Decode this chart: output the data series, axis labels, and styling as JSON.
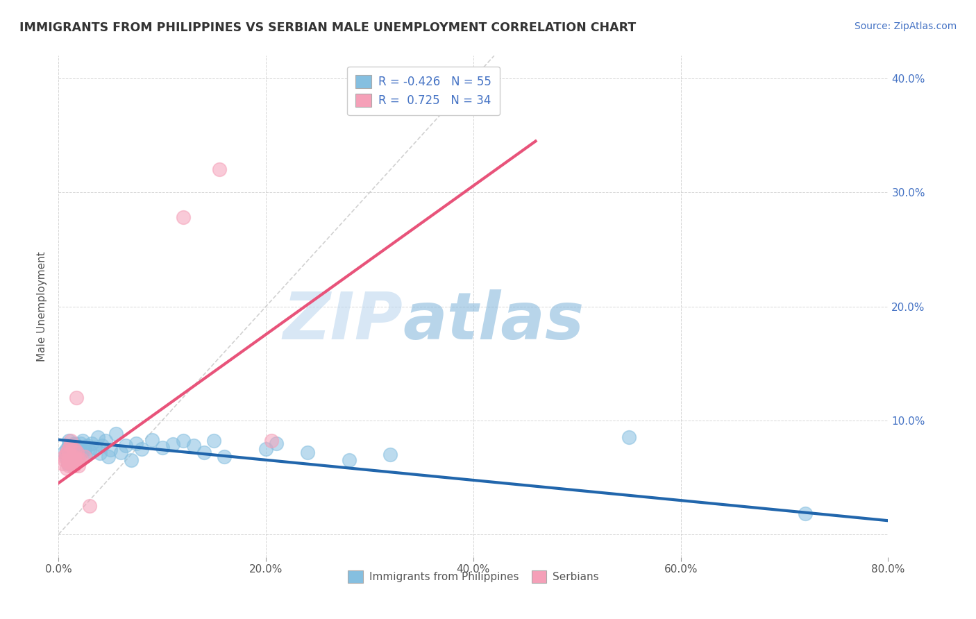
{
  "title": "IMMIGRANTS FROM PHILIPPINES VS SERBIAN MALE UNEMPLOYMENT CORRELATION CHART",
  "source": "Source: ZipAtlas.com",
  "xlabel": "",
  "ylabel": "Male Unemployment",
  "xlim": [
    0,
    0.8
  ],
  "ylim": [
    -0.02,
    0.42
  ],
  "yticks": [
    0.0,
    0.1,
    0.2,
    0.3,
    0.4
  ],
  "ytick_labels": [
    "",
    "10.0%",
    "20.0%",
    "30.0%",
    "40.0%"
  ],
  "xticks": [
    0.0,
    0.2,
    0.4,
    0.6,
    0.8
  ],
  "xtick_labels": [
    "0.0%",
    "20.0%",
    "40.0%",
    "60.0%",
    "80.0%"
  ],
  "legend_R1": "R = -0.426",
  "legend_N1": "N = 55",
  "legend_R2": "R =  0.725",
  "legend_N2": "N = 34",
  "color_blue": "#85bfe0",
  "color_pink": "#f5a0b8",
  "color_blue_line": "#2166ac",
  "color_pink_line": "#e8537a",
  "color_diag": "#cccccc",
  "watermark_zip": "ZIP",
  "watermark_atlas": "atlas",
  "blue_scatter_x": [
    0.005,
    0.007,
    0.008,
    0.009,
    0.01,
    0.01,
    0.011,
    0.012,
    0.012,
    0.013,
    0.014,
    0.015,
    0.015,
    0.016,
    0.016,
    0.017,
    0.018,
    0.019,
    0.02,
    0.021,
    0.022,
    0.023,
    0.025,
    0.026,
    0.028,
    0.03,
    0.032,
    0.035,
    0.038,
    0.04,
    0.042,
    0.045,
    0.048,
    0.05,
    0.055,
    0.06,
    0.065,
    0.07,
    0.075,
    0.08,
    0.09,
    0.1,
    0.11,
    0.12,
    0.13,
    0.14,
    0.15,
    0.16,
    0.2,
    0.21,
    0.24,
    0.28,
    0.32,
    0.55,
    0.72
  ],
  "blue_scatter_y": [
    0.072,
    0.068,
    0.075,
    0.062,
    0.078,
    0.082,
    0.07,
    0.074,
    0.065,
    0.071,
    0.069,
    0.076,
    0.08,
    0.073,
    0.079,
    0.068,
    0.077,
    0.072,
    0.075,
    0.08,
    0.071,
    0.082,
    0.074,
    0.069,
    0.078,
    0.073,
    0.08,
    0.076,
    0.085,
    0.071,
    0.078,
    0.082,
    0.068,
    0.074,
    0.088,
    0.072,
    0.078,
    0.065,
    0.08,
    0.075,
    0.083,
    0.076,
    0.079,
    0.082,
    0.078,
    0.072,
    0.082,
    0.068,
    0.075,
    0.08,
    0.072,
    0.065,
    0.07,
    0.085,
    0.018
  ],
  "pink_scatter_x": [
    0.004,
    0.005,
    0.006,
    0.007,
    0.008,
    0.008,
    0.009,
    0.009,
    0.01,
    0.01,
    0.01,
    0.011,
    0.011,
    0.012,
    0.012,
    0.013,
    0.013,
    0.014,
    0.014,
    0.015,
    0.015,
    0.016,
    0.016,
    0.017,
    0.018,
    0.018,
    0.019,
    0.02,
    0.022,
    0.025,
    0.03,
    0.12,
    0.155,
    0.205
  ],
  "pink_scatter_y": [
    0.062,
    0.068,
    0.065,
    0.07,
    0.058,
    0.072,
    0.064,
    0.074,
    0.06,
    0.065,
    0.07,
    0.062,
    0.078,
    0.066,
    0.082,
    0.06,
    0.068,
    0.064,
    0.075,
    0.06,
    0.068,
    0.074,
    0.065,
    0.12,
    0.066,
    0.072,
    0.06,
    0.065,
    0.066,
    0.068,
    0.025,
    0.278,
    0.32,
    0.082
  ],
  "blue_line_x": [
    0.0,
    0.8
  ],
  "blue_line_y": [
    0.083,
    0.012
  ],
  "pink_line_x": [
    0.0,
    0.46
  ],
  "pink_line_y": [
    0.045,
    0.345
  ],
  "diag_line_x": [
    0.0,
    0.42
  ],
  "diag_line_y": [
    0.0,
    0.42
  ]
}
